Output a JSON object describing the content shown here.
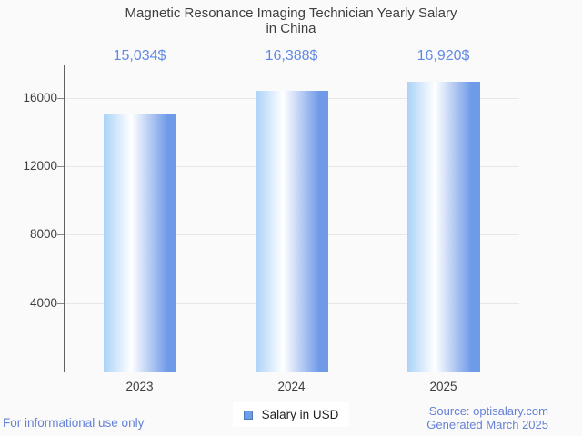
{
  "page": {
    "background": "#fafafa"
  },
  "title": {
    "line1": "Magnetic Resonance Imaging Technician Yearly Salary",
    "line2": "in China",
    "color": "#3f3f3f"
  },
  "legend": {
    "label": "Salary in USD",
    "swatch_fill": "#6d9eea",
    "swatch_border": "#4a79bd"
  },
  "footer": {
    "left_note": "For informational use only",
    "source": "Source: optisalary.com",
    "generated": "Generated March 2025",
    "color": "#6581d6"
  },
  "axes": {
    "axis_color": "#616161",
    "grid_color": "#e6e6e6",
    "tick_label_color": "#3d3d3d"
  },
  "chart_data": {
    "type": "bar",
    "title": "Magnetic Resonance Imaging Technician Yearly Salary in China",
    "categories": [
      "2023",
      "2024",
      "2025"
    ],
    "series": [
      {
        "name": "Salary in USD",
        "values": [
          15034,
          16388,
          16920
        ]
      }
    ],
    "value_labels": [
      "15,034$",
      "16,388$",
      "16,920$"
    ],
    "value_label_color": "#6189e4",
    "yticks": [
      4000,
      8000,
      12000,
      16000
    ],
    "ylim": [
      0,
      17900
    ],
    "grid": true,
    "legend_position": "bottom",
    "bar_gradient": [
      "#abd2f8",
      "#ffffff",
      "#6f9ae8"
    ]
  }
}
